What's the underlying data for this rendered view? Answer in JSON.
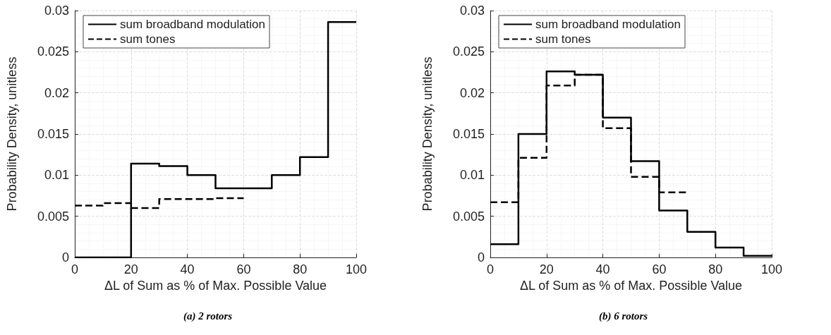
{
  "chart_data": [
    {
      "type": "step",
      "xlabel": "ΔL of Sum as % of Max. Possible Value",
      "ylabel": "Probability Density, unitless",
      "annotations": [
        "(a) 2 rotors"
      ],
      "xlim": [
        0,
        100
      ],
      "xticks": [
        0,
        20,
        40,
        60,
        80,
        100
      ],
      "ylim": [
        0,
        0.03
      ],
      "yticks": [
        0,
        0.005,
        0.01,
        0.015,
        0.02,
        0.025,
        0.03
      ],
      "grid": true,
      "legend": "top left",
      "series": [
        {
          "name": "sum broadband modulation",
          "color": "#000000",
          "line_style": "solid",
          "x": [
            0,
            10,
            20,
            30,
            40,
            50,
            60,
            70,
            80,
            90,
            100
          ],
          "values": [
            0,
            0,
            0.0114,
            0.0111,
            0.01,
            0.0084,
            0.0084,
            0.01,
            0.0122,
            0.0286,
            0.0286
          ]
        },
        {
          "name": "sum tones",
          "color": "#000000",
          "line_style": "dashed",
          "x": [
            0,
            10,
            20,
            30,
            40,
            50,
            60
          ],
          "values": [
            0.0063,
            0.0066,
            0.006,
            0.0071,
            0.0071,
            0.0072,
            0.0072
          ]
        }
      ]
    },
    {
      "type": "step",
      "xlabel": "ΔL of Sum as % of Max. Possible Value",
      "ylabel": "Probability Density, unitless",
      "annotations": [
        "(b) 6 rotors"
      ],
      "xlim": [
        0,
        100
      ],
      "xticks": [
        0,
        20,
        40,
        60,
        80,
        100
      ],
      "ylim": [
        0,
        0.03
      ],
      "yticks": [
        0,
        0.005,
        0.01,
        0.015,
        0.02,
        0.025,
        0.03
      ],
      "grid": true,
      "legend": "top left",
      "series": [
        {
          "name": "sum broadband modulation",
          "color": "#000000",
          "line_style": "solid",
          "x": [
            0,
            10,
            20,
            30,
            40,
            50,
            60,
            70,
            80,
            90,
            100
          ],
          "values": [
            0.0016,
            0.015,
            0.0226,
            0.0222,
            0.017,
            0.0117,
            0.0057,
            0.0031,
            0.0012,
            0.0002,
            0.0002
          ]
        },
        {
          "name": "sum tones",
          "color": "#000000",
          "line_style": "dashed",
          "x": [
            0,
            10,
            20,
            30,
            40,
            50,
            60,
            70
          ],
          "values": [
            0.0067,
            0.0121,
            0.0209,
            0.0222,
            0.0157,
            0.0098,
            0.0079,
            0.0079
          ]
        }
      ]
    }
  ]
}
